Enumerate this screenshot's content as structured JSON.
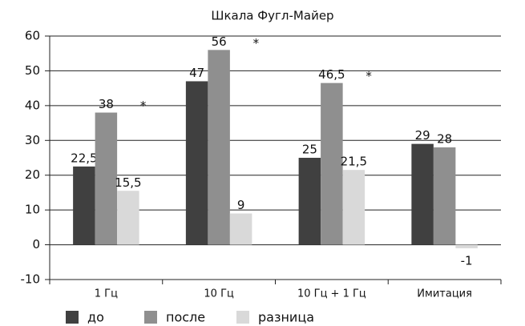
{
  "chart_data": {
    "type": "bar",
    "title": "Шкала Фугл-Майер",
    "categories": [
      "1 Гц",
      "10 Гц",
      "10 Гц + 1 Гц",
      "Имитация"
    ],
    "series": [
      {
        "name": "до",
        "color": "#404040",
        "values": [
          22.5,
          47,
          25,
          29
        ],
        "value_labels": [
          "22,5",
          "47",
          "25",
          "29"
        ]
      },
      {
        "name": "после",
        "color": "#8f8f8f",
        "values": [
          38,
          56,
          46.5,
          28
        ],
        "value_labels": [
          "38",
          "56",
          "46,5",
          "28"
        ]
      },
      {
        "name": "разница",
        "color": "#d9d9d9",
        "values": [
          15.5,
          9,
          21.5,
          -1
        ],
        "value_labels": [
          "15,5",
          "9",
          "21,5",
          "-1"
        ]
      }
    ],
    "annotations": [
      "*",
      "*",
      "*"
    ],
    "ylim": [
      -10,
      60
    ],
    "yticks": [
      -10,
      0,
      10,
      20,
      30,
      40,
      50,
      60
    ],
    "grid": true,
    "legend": "bottom"
  }
}
